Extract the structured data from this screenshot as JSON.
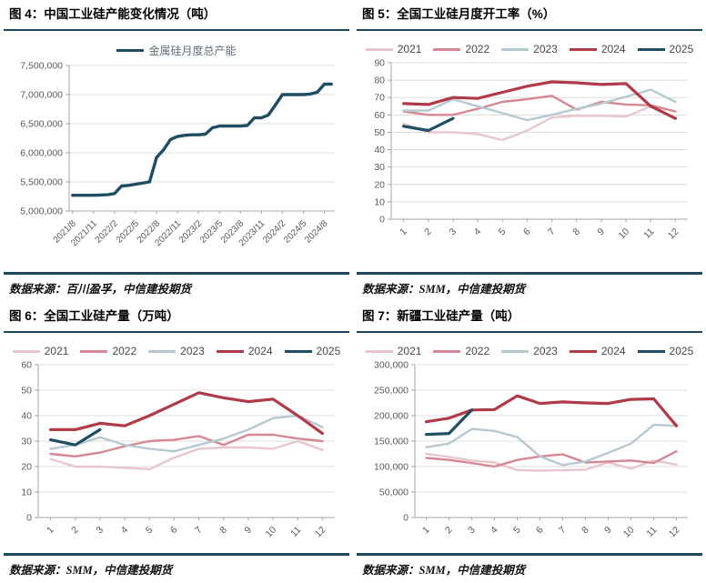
{
  "colors": {
    "separator": "#1f4a5e",
    "grid": "#dcdcdc",
    "axis": "#a6a6a6",
    "tick_text": "#595959",
    "y2021": "#e7c6ce",
    "y2022": "#d58793",
    "y2023": "#b6c8d2",
    "y2024": "#b03a48",
    "y2025": "#1f4e63"
  },
  "figures": [
    {
      "title": "图 4：中国工业硅产能变化情况（吨）",
      "source": "数据来源：百川盈孚，中信建投期货"
    },
    {
      "title": "图 5：全国工业硅月度开工率（%）",
      "source": "数据来源：SMM，中信建投期货"
    },
    {
      "title": "图 6：全国工业硅产量（万吨）",
      "source": "数据来源：SMM，中信建投期货"
    },
    {
      "title": "图 7：新疆工业硅产量（吨）",
      "source": "数据来源：SMM，中信建投期货"
    }
  ],
  "chart_data": [
    {
      "type": "line",
      "title": "中国工业硅产能变化情况（吨）",
      "legend_text_color": "#5f7078",
      "x": [
        "2021/8",
        "2021/9",
        "2021/10",
        "2021/11",
        "2021/12",
        "2022/1",
        "2022/2",
        "2022/3",
        "2022/4",
        "2022/5",
        "2022/6",
        "2022/7",
        "2022/8",
        "2022/9",
        "2022/10",
        "2022/11",
        "2022/12",
        "2023/1",
        "2023/2",
        "2023/3",
        "2023/4",
        "2023/5",
        "2023/6",
        "2023/7",
        "2023/8",
        "2023/9",
        "2023/10",
        "2023/11",
        "2023/12",
        "2024/1",
        "2024/2",
        "2024/3",
        "2024/4",
        "2024/5",
        "2024/6",
        "2024/7",
        "2024/8",
        "2024/9"
      ],
      "xtick_every": 3,
      "ylim": [
        5000000,
        7500000
      ],
      "ytick_values": [
        5000000,
        5500000,
        6000000,
        6500000,
        7000000,
        7500000
      ],
      "ytick_labels": [
        "5,000,000",
        "5,500,000",
        "6,000,000",
        "6,500,000",
        "7,000,000",
        "7,500,000"
      ],
      "grid": true,
      "legend_position": "top",
      "series": [
        {
          "name": "金属硅月度总产能",
          "color": "#1f4e63",
          "width": 3.4,
          "values": [
            5270000,
            5270000,
            5270000,
            5270000,
            5275000,
            5280000,
            5300000,
            5430000,
            5440000,
            5460000,
            5480000,
            5500000,
            5920000,
            6050000,
            6230000,
            6280000,
            6300000,
            6310000,
            6310000,
            6320000,
            6430000,
            6460000,
            6460000,
            6460000,
            6460000,
            6470000,
            6600000,
            6600000,
            6650000,
            6820000,
            7000000,
            7000000,
            7000000,
            7000000,
            7010000,
            7040000,
            7180000,
            7180000
          ]
        }
      ]
    },
    {
      "type": "line",
      "title": "全国工业硅月度开工率（%）",
      "x": [
        "1",
        "2",
        "3",
        "4",
        "5",
        "6",
        "7",
        "8",
        "9",
        "10",
        "11",
        "12"
      ],
      "xtick_every": 1,
      "ylim": [
        0,
        90
      ],
      "ytick_values": [
        0,
        10,
        20,
        30,
        40,
        50,
        60,
        70,
        80,
        90
      ],
      "ytick_labels": [
        "0",
        "10",
        "20",
        "30",
        "40",
        "50",
        "60",
        "70",
        "80",
        "90"
      ],
      "grid": true,
      "legend_position": "top",
      "series": [
        {
          "name": "2021",
          "color": "#e7c6ce",
          "width": 2.4,
          "values": [
            55,
            50,
            50,
            49,
            45.5,
            51,
            58.5,
            59.5,
            59.5,
            59,
            65,
            62
          ]
        },
        {
          "name": "2022",
          "color": "#d58793",
          "width": 2.4,
          "values": [
            62,
            60,
            60,
            63.5,
            67.5,
            69,
            71,
            63,
            67.5,
            66,
            65.5,
            62
          ]
        },
        {
          "name": "2023",
          "color": "#b6c8d2",
          "width": 2.4,
          "values": [
            62.5,
            62.5,
            69,
            65,
            61,
            57,
            60,
            63.5,
            66.5,
            70.5,
            74.5,
            67.5
          ]
        },
        {
          "name": "2024",
          "color": "#b03a48",
          "width": 3.2,
          "values": [
            66.5,
            66,
            70,
            69.5,
            73,
            76.5,
            79,
            78.5,
            77.5,
            78,
            65,
            58
          ]
        },
        {
          "name": "2025",
          "color": "#1f4e63",
          "width": 3.2,
          "values": [
            53.5,
            51,
            58
          ]
        }
      ]
    },
    {
      "type": "line",
      "title": "全国工业硅产量（万吨）",
      "x": [
        "1",
        "2",
        "3",
        "4",
        "5",
        "6",
        "7",
        "8",
        "9",
        "10",
        "11",
        "12"
      ],
      "xtick_every": 1,
      "ylim": [
        0,
        60
      ],
      "ytick_values": [
        0,
        10,
        20,
        30,
        40,
        50,
        60
      ],
      "ytick_labels": [
        "0",
        "10",
        "20",
        "30",
        "40",
        "50",
        "60"
      ],
      "grid": true,
      "legend_position": "top",
      "series": [
        {
          "name": "2021",
          "color": "#e7c6ce",
          "width": 2.4,
          "values": [
            23,
            20,
            20,
            19.5,
            19,
            23.5,
            27,
            27.5,
            27.5,
            27,
            30,
            26.5
          ]
        },
        {
          "name": "2022",
          "color": "#d58793",
          "width": 2.4,
          "values": [
            25,
            24,
            25.5,
            28,
            30,
            30.5,
            32,
            28.5,
            32.5,
            32.5,
            31,
            30
          ]
        },
        {
          "name": "2023",
          "color": "#b6c8d2",
          "width": 2.4,
          "values": [
            27,
            28.5,
            31.5,
            28.5,
            27,
            26,
            28.5,
            31,
            34.5,
            39,
            40,
            35.5
          ]
        },
        {
          "name": "2024",
          "color": "#b03a48",
          "width": 3.2,
          "values": [
            34.5,
            34.5,
            37,
            36,
            40,
            44.5,
            49,
            47,
            45.5,
            46.5,
            40,
            33
          ]
        },
        {
          "name": "2025",
          "color": "#1f4e63",
          "width": 3.2,
          "values": [
            30.5,
            28.5,
            34.5
          ]
        }
      ]
    },
    {
      "type": "line",
      "title": "新疆工业硅产量（吨）",
      "x": [
        "1",
        "2",
        "3",
        "4",
        "5",
        "6",
        "7",
        "8",
        "9",
        "10",
        "11",
        "12"
      ],
      "xtick_every": 1,
      "ylim": [
        0,
        300000
      ],
      "ytick_values": [
        0,
        50000,
        100000,
        150000,
        200000,
        250000,
        300000
      ],
      "ytick_labels": [
        "0",
        "50,000",
        "100,000",
        "150,000",
        "200,000",
        "250,000",
        "300,000"
      ],
      "grid": true,
      "legend_position": "top",
      "series": [
        {
          "name": "2021",
          "color": "#e7c6ce",
          "width": 2.4,
          "values": [
            125000,
            119000,
            112000,
            108000,
            93000,
            92000,
            93000,
            94000,
            108000,
            96000,
            112000,
            104000
          ]
        },
        {
          "name": "2022",
          "color": "#d58793",
          "width": 2.4,
          "values": [
            117000,
            113000,
            107000,
            100000,
            113000,
            120000,
            124000,
            108000,
            110000,
            112000,
            107000,
            130000
          ]
        },
        {
          "name": "2023",
          "color": "#b6c8d2",
          "width": 2.4,
          "values": [
            138000,
            145000,
            174000,
            170000,
            158000,
            120000,
            103000,
            110000,
            127000,
            145000,
            182000,
            180000
          ]
        },
        {
          "name": "2024",
          "color": "#b03a48",
          "width": 3.2,
          "values": [
            188000,
            195000,
            211000,
            212000,
            239000,
            224000,
            227000,
            225000,
            224000,
            232000,
            233000,
            180000
          ]
        },
        {
          "name": "2025",
          "color": "#1f4e63",
          "width": 3.2,
          "values": [
            163000,
            165000,
            211000
          ]
        }
      ]
    }
  ]
}
